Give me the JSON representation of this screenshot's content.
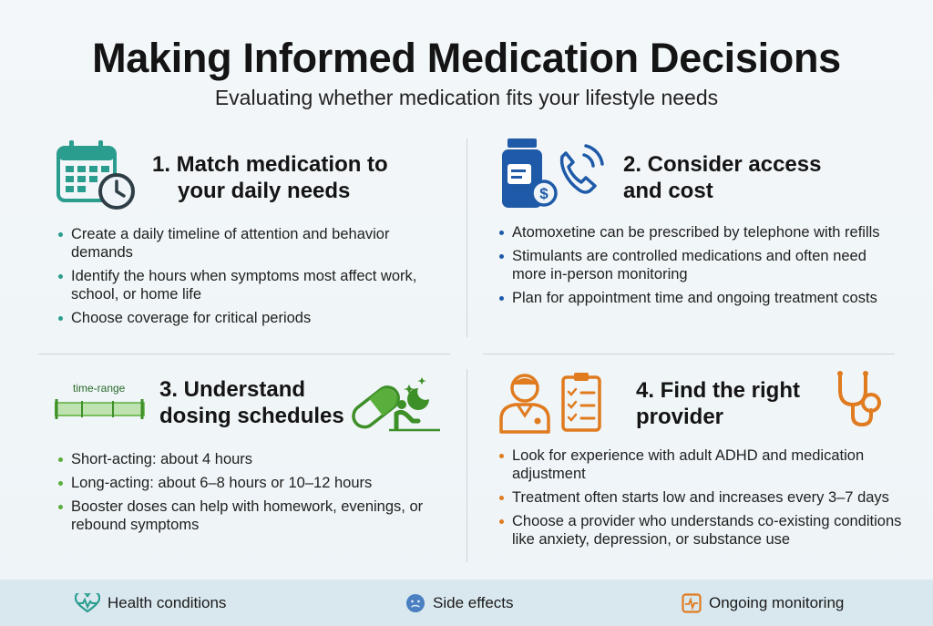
{
  "header": {
    "title": "Making Informed Medication Decisions",
    "subtitle": "Evaluating whether medication fits your lifestyle needs"
  },
  "sections": [
    {
      "heading_line1": "1. Match medication to",
      "heading_line2": "your daily needs",
      "icon": "calendar-clock-icon",
      "color": "#2a9d8f",
      "bullets": [
        "Create a daily timeline of attention and behavior demands",
        "Identify the hours when symptoms most affect work, school, or home life",
        "Choose coverage for critical periods"
      ]
    },
    {
      "heading_line1": "2. Consider access",
      "heading_line2": "and cost",
      "icon": "pill-bottle-phone-icon",
      "color": "#1e5aa8",
      "bullets": [
        "Atomoxetine can be prescribed by telephone with refills",
        "Stimulants are controlled medications and often need more in-person monitoring",
        "Plan for appointment time and ongoing treatment costs"
      ]
    },
    {
      "heading_line1": "3. Understand",
      "heading_line2": "dosing schedules",
      "icon": "capsule-night-icon",
      "color": "#5aae3c",
      "timebar_label": "time-range",
      "bullets": [
        "Short-acting: about 4 hours",
        "Long-acting: about 6–8 hours or 10–12 hours",
        "Booster doses can help with homework, evenings, or rebound symptoms"
      ]
    },
    {
      "heading_line1": "4. Find the right",
      "heading_line2": "provider",
      "icon": "doctor-checklist-icon",
      "color": "#e07b1f",
      "bullets": [
        "Look for experience with adult ADHD and medication adjustment",
        "Treatment often starts low and increases every 3–7 days",
        "Choose a provider who understands co-existing conditions like anxiety, depression, or substance use"
      ]
    }
  ],
  "footer": {
    "items": [
      {
        "label": "Health conditions",
        "icon": "heart-pulse-icon"
      },
      {
        "label": "Side effects",
        "icon": "face-icon"
      },
      {
        "label": "Ongoing monitoring",
        "icon": "monitor-pulse-icon"
      }
    ]
  }
}
